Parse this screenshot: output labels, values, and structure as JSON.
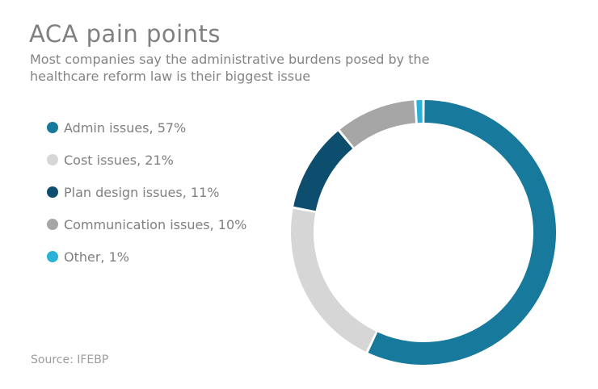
{
  "header": {
    "title": "ACA pain points",
    "subtitle_lines": [
      "Most companies say the administrative burdens posed by the",
      "healthcare reform law is their biggest issue"
    ]
  },
  "legend": {
    "items": [
      {
        "label": "Admin issues, 57%",
        "color": "#17799B"
      },
      {
        "label": "Cost issues, 21%",
        "color": "#D6D6D6"
      },
      {
        "label": "Plan design issues, 11%",
        "color": "#0D4E6E"
      },
      {
        "label": "Communication issues, 10%",
        "color": "#A6A6A6"
      },
      {
        "label": "Other, 1%",
        "color": "#29B1D6"
      }
    ]
  },
  "chart_data": {
    "type": "pie",
    "subtype": "donut",
    "title": "ACA pain points",
    "labels": [
      "Admin issues",
      "Cost issues",
      "Plan design issues",
      "Communication issues",
      "Other"
    ],
    "values": [
      57,
      21,
      11,
      10,
      1
    ],
    "unit": "%",
    "colors": [
      "#17799B",
      "#D6D6D6",
      "#0D4E6E",
      "#A6A6A6",
      "#29B1D6"
    ],
    "start_angle_deg": 0,
    "direction": "clockwise",
    "donut_hole_ratio": 0.83,
    "slice_separator_color": "#FFFFFF",
    "legend_position": "left"
  },
  "source": {
    "text": "Source: IFEBP"
  }
}
